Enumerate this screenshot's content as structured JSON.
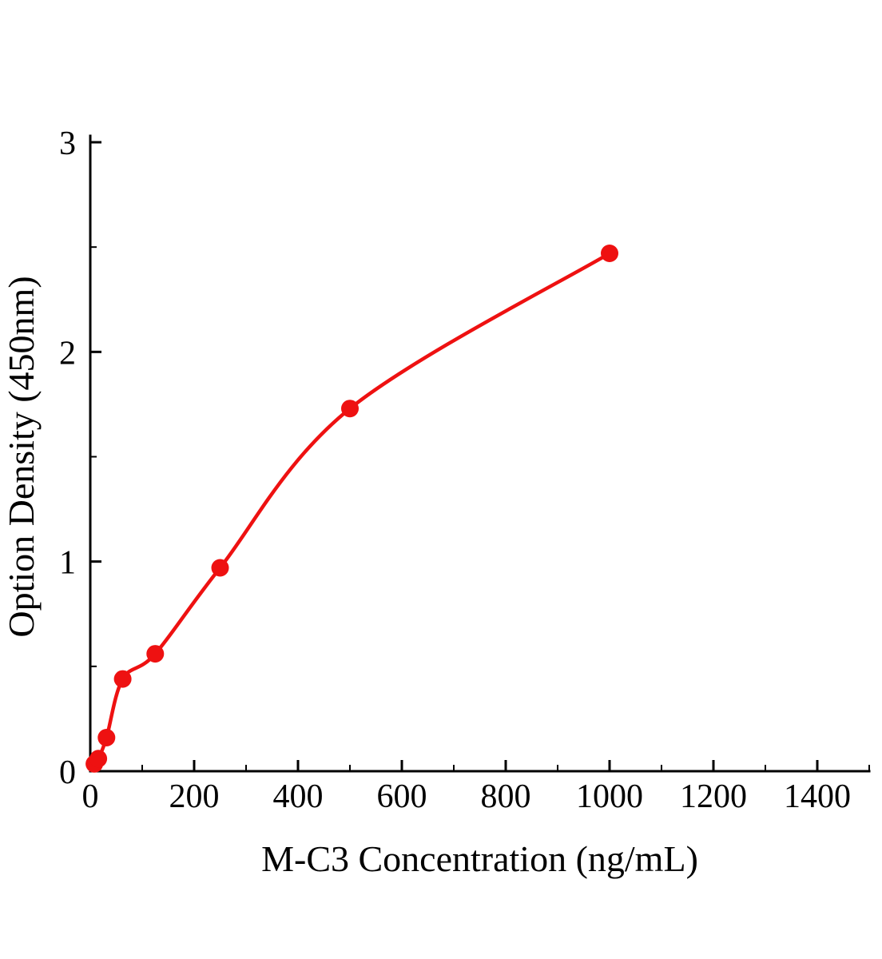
{
  "chart_data": {
    "type": "scatter",
    "title": "",
    "xlabel": "M-C3 Concentration (ng/mL)",
    "ylabel": "Option Density (450nm)",
    "x": [
      7.8,
      15.6,
      31.25,
      62.5,
      125,
      250,
      500,
      1000
    ],
    "y": [
      0.035,
      0.06,
      0.16,
      0.44,
      0.56,
      0.97,
      1.73,
      2.47
    ],
    "xlim": [
      0,
      1500
    ],
    "ylim": [
      0,
      3
    ],
    "xticks": [
      0,
      200,
      400,
      600,
      800,
      1000,
      1200,
      1400
    ],
    "yticks": [
      0,
      1,
      2,
      3
    ],
    "x_minor_ticks": [
      100,
      300,
      500,
      700,
      900,
      1100,
      1300,
      1500
    ],
    "y_minor_ticks": [
      0.5,
      1.5,
      2.5
    ],
    "grid": false,
    "legend": "none",
    "curve": "smooth saturating fit through points",
    "point_color": "#ee1111",
    "curve_color": "#ee1111",
    "axis_color": "#000000"
  }
}
